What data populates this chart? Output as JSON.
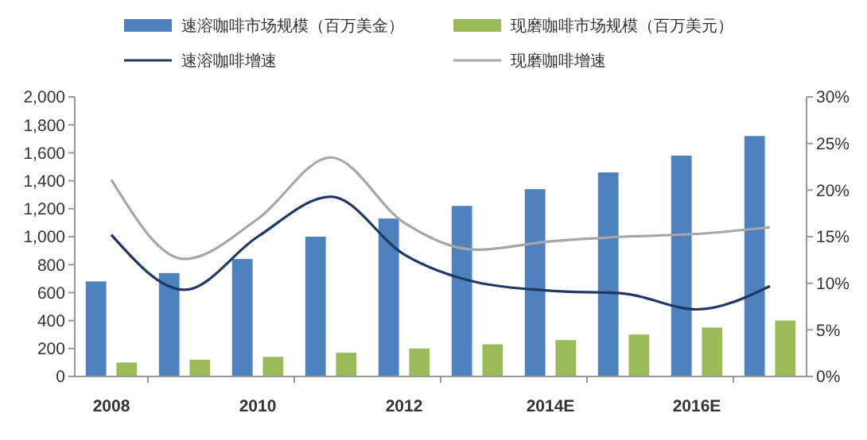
{
  "chart_data": {
    "type": "bar",
    "categories": [
      "2008",
      null,
      "2010",
      null,
      "2012",
      null,
      "2014E",
      null,
      "2016E",
      null
    ],
    "series": [
      {
        "name": "速溶咖啡市场规模（百万美金）",
        "color": "#4f81bd",
        "values": [
          680,
          740,
          840,
          1000,
          1130,
          1220,
          1340,
          1460,
          1580,
          1720
        ]
      },
      {
        "name": "现磨咖啡市场规模（百万美元）",
        "color": "#9bbb59",
        "values": [
          100,
          120,
          140,
          170,
          200,
          230,
          260,
          300,
          350,
          400
        ]
      },
      {
        "name": "速溶咖啡增速",
        "type": "line",
        "axis": "y2",
        "color": "#1f3864",
        "values": [
          15.2,
          9.3,
          15.0,
          19.3,
          13.1,
          10.1,
          9.2,
          8.9,
          7.2,
          9.7
        ]
      },
      {
        "name": "现磨咖啡增速",
        "type": "line",
        "axis": "y2",
        "color": "#a6a6a6",
        "values": [
          21.1,
          12.6,
          16.9,
          23.5,
          16.5,
          13.6,
          14.5,
          15.0,
          15.3,
          16.0
        ]
      }
    ],
    "ylim": [
      0,
      2000
    ],
    "yticks": [
      0,
      200,
      400,
      600,
      800,
      {
        "value": 1000,
        "label": "1,000"
      },
      {
        "value": 1200,
        "label": "1,200"
      },
      {
        "value": 1400,
        "label": "1,400"
      },
      {
        "value": 1600,
        "label": "1,600"
      },
      {
        "value": 1800,
        "label": "1,800"
      },
      {
        "value": 2000,
        "label": "2,000"
      }
    ],
    "y2lim": [
      0,
      30
    ],
    "y2ticks": [
      {
        "value": 0,
        "label": "0%"
      },
      {
        "value": 5,
        "label": "5%"
      },
      {
        "value": 10,
        "label": "10%"
      },
      {
        "value": 15,
        "label": "15%"
      },
      {
        "value": 20,
        "label": "20%"
      },
      {
        "value": 25,
        "label": "25%"
      },
      {
        "value": 30,
        "label": "30%"
      }
    ],
    "legend": "top",
    "grid": false,
    "marker": "none",
    "line_style": "solid"
  }
}
